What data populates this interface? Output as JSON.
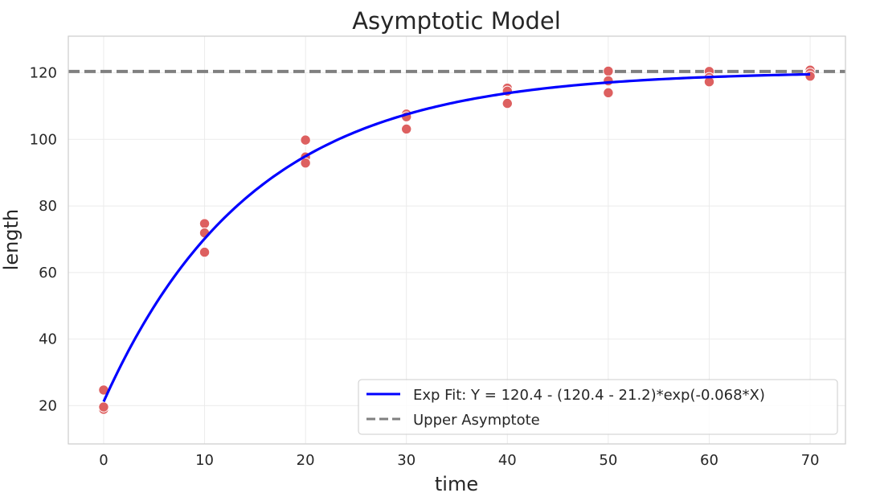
{
  "chart_data": {
    "type": "scatter",
    "title": "Asymptotic Model",
    "xlabel": "time",
    "ylabel": "length",
    "xlim": [
      -3.5,
      73.5
    ],
    "ylim": [
      8.5,
      131
    ],
    "xticks": [
      0,
      10,
      20,
      30,
      40,
      50,
      60,
      70
    ],
    "yticks": [
      20,
      40,
      60,
      80,
      100,
      120
    ],
    "grid": true,
    "legend_position": "lower-right",
    "colors": {
      "points": "#dd6060",
      "fit": "#0000ff",
      "asymptote": "#808080",
      "grid": "#ebebeb",
      "frame": "#cccccc"
    },
    "points": {
      "x": [
        0,
        0,
        0,
        0,
        10,
        10,
        10,
        20,
        20,
        20,
        30,
        30,
        30,
        40,
        40,
        40,
        40,
        50,
        50,
        50,
        60,
        60,
        60,
        60,
        70,
        70,
        70
      ],
      "y": [
        24.7,
        19.8,
        18.9,
        19.6,
        74.7,
        71.9,
        66.1,
        99.8,
        94.7,
        92.9,
        107.6,
        106.8,
        103.1,
        115.4,
        114.5,
        110.9,
        110.8,
        120.5,
        117.6,
        114.0,
        120.4,
        118.6,
        117.8,
        117.3,
        120.8,
        119.9,
        119.0
      ]
    },
    "series": [
      {
        "name": "Exp Fit: Y = 120.4 - (120.4 - 21.2)*exp(-0.068*X)",
        "type": "line",
        "model": {
          "asymptote": 120.4,
          "start": 21.2,
          "rate": 0.068
        },
        "x_range": [
          0,
          70
        ]
      },
      {
        "name": "Upper Asymptote",
        "type": "hline",
        "y": 120.4
      }
    ]
  }
}
